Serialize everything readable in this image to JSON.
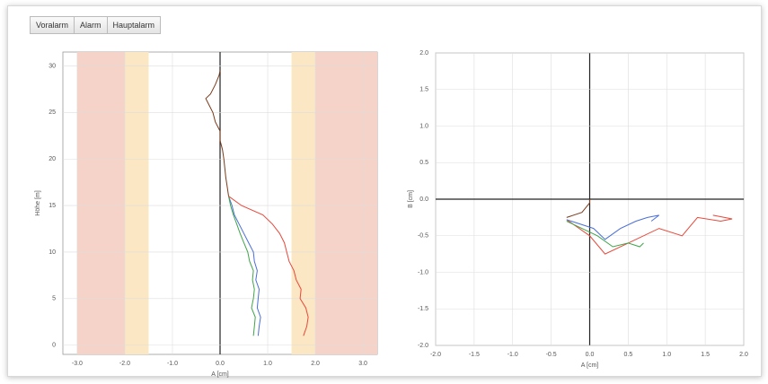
{
  "buttons": [
    "Voralarm",
    "Alarm",
    "Hauptalarm"
  ],
  "chart_data": [
    {
      "type": "line",
      "x_label": "A [cm]",
      "y_label": "Höhe [m]",
      "xlim": [
        -3.3,
        3.3
      ],
      "xticks": [
        {
          "value": -3,
          "label": "-3.0"
        },
        {
          "value": -2,
          "label": "-2.0"
        },
        {
          "value": -1,
          "label": "-1.0"
        },
        {
          "value": 0,
          "label": "0.0"
        },
        {
          "value": 1,
          "label": "1.0"
        },
        {
          "value": 2,
          "label": "2.0"
        },
        {
          "value": 3,
          "label": "3.0"
        }
      ],
      "ylim": [
        -1,
        31.5
      ],
      "yticks": [
        0,
        5,
        10,
        15,
        20,
        25,
        30
      ],
      "grid": true,
      "bands": [
        {
          "from": -3,
          "to": -2,
          "color": "#f6d3c8"
        },
        {
          "from": -2,
          "to": -1.5,
          "color": "#fbe7c4"
        },
        {
          "from": 1.5,
          "to": 2,
          "color": "#fbe7c4"
        },
        {
          "from": 2,
          "to": 3.3,
          "color": "#f6d3c8"
        }
      ],
      "y": [
        29.5,
        29,
        28,
        27,
        26.5,
        26,
        25,
        24,
        23,
        22,
        21,
        20,
        19,
        18,
        17,
        16,
        15,
        14,
        13,
        12,
        11,
        10,
        9,
        8,
        7,
        6,
        5,
        4,
        3,
        2,
        1
      ],
      "series": [
        {
          "color": "#7a3b1a",
          "x": [
            0,
            -0.02,
            -0.1,
            -0.2,
            -0.3,
            -0.25,
            -0.15,
            -0.1,
            0.0,
            0.0,
            0.05,
            0.08,
            0.1,
            0.12,
            0.15,
            0.18,
            null,
            null,
            null,
            null,
            null,
            null,
            null,
            null,
            null,
            null,
            null,
            null,
            null,
            null,
            null
          ]
        },
        {
          "color": "#4a6fd8",
          "x": [
            null,
            null,
            null,
            null,
            null,
            null,
            null,
            null,
            null,
            null,
            null,
            null,
            null,
            null,
            null,
            0.18,
            0.25,
            0.3,
            0.4,
            0.5,
            0.6,
            0.7,
            0.72,
            0.78,
            0.75,
            0.82,
            0.8,
            0.78,
            0.85,
            0.82,
            0.8
          ]
        },
        {
          "color": "#3fa54a",
          "x": [
            null,
            null,
            null,
            null,
            null,
            null,
            null,
            null,
            null,
            null,
            null,
            null,
            null,
            null,
            null,
            0.18,
            0.22,
            0.28,
            0.35,
            0.42,
            0.5,
            0.58,
            0.62,
            0.7,
            0.68,
            0.72,
            0.7,
            0.66,
            0.74,
            0.72,
            0.7
          ]
        },
        {
          "color": "#e8483a",
          "x": [
            null,
            null,
            null,
            null,
            null,
            null,
            null,
            null,
            null,
            null,
            null,
            null,
            null,
            null,
            null,
            0.18,
            0.45,
            0.9,
            1.1,
            1.25,
            1.35,
            1.4,
            1.45,
            1.55,
            1.6,
            1.7,
            1.68,
            1.8,
            1.85,
            1.82,
            1.75
          ]
        }
      ]
    },
    {
      "type": "line",
      "x_label": "A [cm]",
      "y_label": "B [cm]",
      "xlim": [
        -2,
        2
      ],
      "xticks": [
        {
          "value": -2,
          "label": "-2.0"
        },
        -1.5,
        {
          "value": -1,
          "label": "-1.0"
        },
        -0.5,
        {
          "value": 0,
          "label": "0.0"
        },
        0.5,
        {
          "value": 1,
          "label": "1.0"
        },
        1.5,
        {
          "value": 2,
          "label": "2.0"
        }
      ],
      "ylim": [
        -2,
        2
      ],
      "yticks": [
        {
          "value": -2,
          "label": "-2.0"
        },
        -1.5,
        {
          "value": -1,
          "label": "-1.0"
        },
        -0.5,
        {
          "value": 0,
          "label": "0.0"
        },
        0.5,
        {
          "value": 1,
          "label": "1.0"
        },
        1.5,
        {
          "value": 2,
          "label": "2.0"
        }
      ],
      "grid": true,
      "bands": [],
      "series": [
        {
          "color": "#e8483a",
          "x": [
            -0.3,
            0.0,
            0.2,
            0.5,
            0.9,
            1.2,
            1.4,
            1.7,
            1.85,
            1.6
          ],
          "y": [
            -0.28,
            -0.5,
            -0.75,
            -0.6,
            -0.4,
            -0.5,
            -0.25,
            -0.3,
            -0.27,
            -0.22
          ]
        },
        {
          "color": "#4a6fd8",
          "x": [
            -0.3,
            0.05,
            0.2,
            0.4,
            0.6,
            0.75,
            0.9,
            0.8
          ],
          "y": [
            -0.28,
            -0.4,
            -0.55,
            -0.4,
            -0.3,
            -0.25,
            -0.22,
            -0.3
          ]
        },
        {
          "color": "#3fa54a",
          "x": [
            -0.3,
            0.1,
            0.3,
            0.5,
            0.65,
            0.7
          ],
          "y": [
            -0.3,
            -0.5,
            -0.65,
            -0.6,
            -0.65,
            -0.6
          ]
        },
        {
          "color": "#7a3b1a",
          "x": [
            0,
            0,
            -0.1,
            -0.3
          ],
          "y": [
            0,
            -0.05,
            -0.18,
            -0.25
          ]
        }
      ]
    }
  ]
}
